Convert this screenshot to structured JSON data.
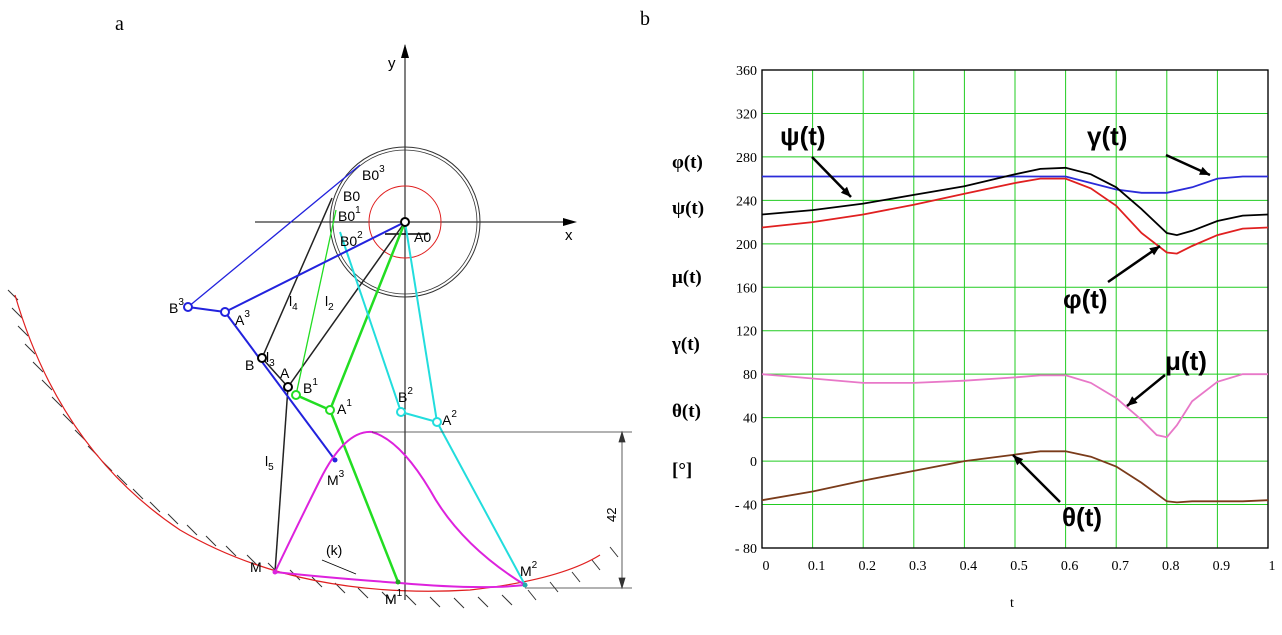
{
  "panel_a": {
    "label": "a",
    "axis_x": "x",
    "axis_y": "y",
    "dimension": "42",
    "curve_label": "(k)",
    "points": {
      "A0": "A0",
      "B0": "B0",
      "B01": "B0",
      "B02": "B0",
      "B03": "B0",
      "A": "A",
      "B": "B",
      "A1": "A",
      "B1": "B",
      "A2": "A",
      "B2": "B",
      "A3": "A",
      "B3": "B",
      "M": "M",
      "M1": "M",
      "M2": "M",
      "M3": "M"
    },
    "superscripts": {
      "s1": "1",
      "s2": "2",
      "s3": "3"
    },
    "subscripts": {
      "zero": "0"
    },
    "link_labels": {
      "l2": "l",
      "l2sub": "2",
      "l3": "l",
      "l3sub": "3",
      "l4": "l",
      "l4sub": "4",
      "l5": "l",
      "l5sub": "5"
    }
  },
  "chart_data": {
    "type": "line",
    "panel_label": "b",
    "xlabel": "t",
    "xlim": [
      0,
      1
    ],
    "ylim": [
      -80,
      360
    ],
    "x_ticks": [
      "0",
      "0.1",
      "0.2",
      "0.3",
      "0.4",
      "0.5",
      "0.6",
      "0.7",
      "0.8",
      "0.9",
      "1"
    ],
    "y_ticks": [
      "360",
      "320",
      "280",
      "240",
      "200",
      "160",
      "120",
      "80",
      "40",
      "0",
      "- 40",
      "- 80"
    ],
    "ylabel_lines": [
      "φ(t)",
      "ψ(t)",
      "μ(t)",
      "γ(t)",
      "θ(t)",
      "[°]"
    ],
    "grid": true,
    "grid_color": "#22cc22",
    "annotations": [
      {
        "text": "ψ(t)",
        "series": "ψ(t)"
      },
      {
        "text": "γ(t)",
        "series": "γ(t)"
      },
      {
        "text": "φ(t)",
        "series": "φ(t)"
      },
      {
        "text": "μ(t)",
        "series": "μ(t)"
      },
      {
        "text": "θ(t)",
        "series": "θ(t)"
      }
    ],
    "series": [
      {
        "name": "γ(t)",
        "color": "#2b2bd9",
        "x": [
          0,
          0.1,
          0.2,
          0.3,
          0.4,
          0.5,
          0.55,
          0.6,
          0.65,
          0.7,
          0.75,
          0.8,
          0.85,
          0.9,
          0.95,
          1.0
        ],
        "y": [
          262,
          262,
          262,
          262,
          262,
          262,
          262,
          262,
          256,
          250,
          247,
          247,
          252,
          260,
          262,
          262
        ]
      },
      {
        "name": "ψ(t)",
        "color": "#000000",
        "x": [
          0,
          0.1,
          0.2,
          0.3,
          0.4,
          0.5,
          0.55,
          0.6,
          0.65,
          0.7,
          0.75,
          0.8,
          0.82,
          0.85,
          0.9,
          0.95,
          1.0
        ],
        "y": [
          227,
          231,
          237,
          245,
          253,
          264,
          269,
          270,
          264,
          252,
          232,
          210,
          208,
          212,
          221,
          226,
          227
        ]
      },
      {
        "name": "φ(t)",
        "color": "#e02020",
        "x": [
          0,
          0.1,
          0.2,
          0.3,
          0.4,
          0.5,
          0.55,
          0.6,
          0.65,
          0.7,
          0.75,
          0.8,
          0.82,
          0.85,
          0.9,
          0.95,
          1.0
        ],
        "y": [
          215,
          220,
          227,
          236,
          246,
          256,
          260,
          260,
          251,
          235,
          210,
          192,
          191,
          198,
          208,
          214,
          215
        ]
      },
      {
        "name": "μ(t)",
        "color": "#e878c8",
        "x": [
          0,
          0.1,
          0.2,
          0.3,
          0.4,
          0.5,
          0.55,
          0.6,
          0.65,
          0.7,
          0.75,
          0.78,
          0.8,
          0.82,
          0.85,
          0.9,
          0.95,
          1.0
        ],
        "y": [
          80,
          76,
          72,
          72,
          74,
          77,
          79,
          79,
          72,
          58,
          38,
          24,
          22,
          33,
          55,
          73,
          80,
          80
        ]
      },
      {
        "name": "θ(t)",
        "color": "#7a3b1a",
        "x": [
          0,
          0.1,
          0.2,
          0.3,
          0.4,
          0.5,
          0.55,
          0.6,
          0.65,
          0.7,
          0.75,
          0.8,
          0.82,
          0.85,
          0.9,
          0.95,
          1.0
        ],
        "y": [
          -36,
          -28,
          -18,
          -9,
          0,
          6,
          9,
          9,
          4,
          -5,
          -20,
          -37,
          -38,
          -37,
          -37,
          -37,
          -36
        ]
      }
    ]
  }
}
